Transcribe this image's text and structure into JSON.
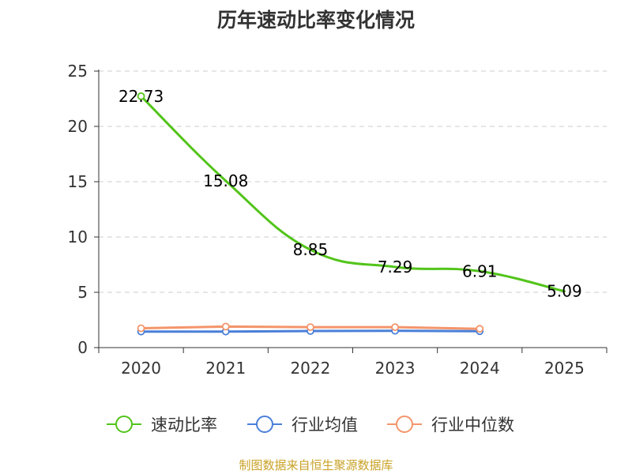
{
  "chart_data": {
    "type": "line",
    "title": "历年速动比率变化情况",
    "categories": [
      "2020",
      "2021",
      "2022",
      "2023",
      "2024",
      "2025"
    ],
    "ylim": [
      0,
      25
    ],
    "yticks": [
      "0",
      "5",
      "10",
      "15",
      "20",
      "25"
    ],
    "grid": "horizontal-dashed",
    "legend_position": "bottom",
    "series": [
      {
        "name": "速动比率",
        "color": "#52c41a",
        "values": [
          22.73,
          15.08,
          8.85,
          7.29,
          6.91,
          5.09
        ],
        "labels": [
          "22.73",
          "15.08",
          "8.85",
          "7.29",
          "6.91",
          "5.09"
        ],
        "markers": [
          true,
          false,
          false,
          false,
          false,
          false
        ]
      },
      {
        "name": "行业均值",
        "color": "#4a7fd8",
        "values": [
          1.45,
          1.45,
          1.5,
          1.52,
          1.48,
          null
        ]
      },
      {
        "name": "行业中位数",
        "color": "#f4956b",
        "values": [
          1.75,
          1.9,
          1.85,
          1.85,
          1.7,
          null
        ]
      }
    ]
  },
  "footer": {
    "source": "制图数据来自恒生聚源数据库"
  }
}
